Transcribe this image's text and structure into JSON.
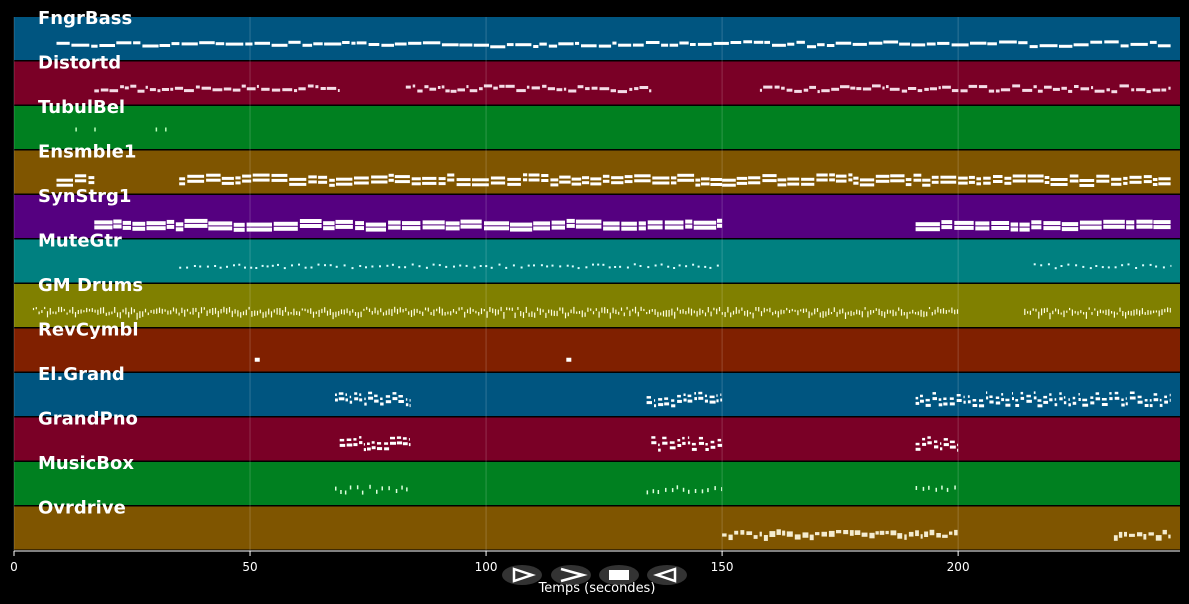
{
  "chart_data": {
    "type": "piano-roll",
    "title": "",
    "xlabel": "Temps (secondes)",
    "xlim": [
      0,
      247
    ],
    "x_ticks": [
      0,
      50,
      100,
      150,
      200
    ],
    "grid": true,
    "tracks": [
      {
        "name": "FngrBass",
        "color": "#005580",
        "segments": [
          [
            9,
            245
          ]
        ],
        "pattern": "bass"
      },
      {
        "name": "Distortd",
        "color": "#7a0026",
        "segments": [
          [
            17,
            69
          ],
          [
            83,
            135
          ],
          [
            158,
            245
          ]
        ],
        "pattern": "lead"
      },
      {
        "name": "TubulBel",
        "color": "#008020",
        "segments": [
          [
            13,
            13.5
          ],
          [
            17,
            17.5
          ],
          [
            30,
            30.5
          ],
          [
            32,
            32.5
          ]
        ],
        "pattern": "sparse"
      },
      {
        "name": "Ensmble1",
        "color": "#7f5500",
        "segments": [
          [
            9,
            17
          ],
          [
            35,
            150
          ],
          [
            150,
            200
          ],
          [
            200,
            245
          ]
        ],
        "pattern": "chords"
      },
      {
        "name": "SynStrg1",
        "color": "#550080",
        "segments": [
          [
            17,
            150
          ],
          [
            191,
            245
          ]
        ],
        "pattern": "pad"
      },
      {
        "name": "MuteGtr",
        "color": "#008080",
        "segments": [
          [
            35,
            150
          ],
          [
            216,
            245
          ]
        ],
        "pattern": "dots"
      },
      {
        "name": "GM Drums",
        "color": "#808000",
        "segments": [
          [
            4,
            200
          ],
          [
            214,
            245
          ]
        ],
        "pattern": "drums"
      },
      {
        "name": "RevCymbl",
        "color": "#802000",
        "segments": [
          [
            51,
            52
          ],
          [
            117,
            118
          ]
        ],
        "pattern": "single"
      },
      {
        "name": "El.Grand",
        "color": "#005580",
        "segments": [
          [
            68,
            84
          ],
          [
            134,
            150
          ],
          [
            191,
            245
          ]
        ],
        "pattern": "piano"
      },
      {
        "name": "GrandPno",
        "color": "#7a0026",
        "segments": [
          [
            69,
            84
          ],
          [
            135,
            150
          ],
          [
            191,
            200
          ]
        ],
        "pattern": "piano"
      },
      {
        "name": "MusicBox",
        "color": "#008020",
        "segments": [
          [
            68,
            84
          ],
          [
            134,
            150
          ],
          [
            191,
            200
          ]
        ],
        "pattern": "sparse-run"
      },
      {
        "name": "Ovrdrive",
        "color": "#7f5500",
        "segments": [
          [
            150,
            200
          ],
          [
            233,
            245
          ]
        ],
        "pattern": "lead-low"
      }
    ]
  },
  "controls": {
    "play_icon": "play-outline-icon",
    "forward_icon": "forward-icon",
    "stop_icon": "stop-icon",
    "back_icon": "back-icon"
  }
}
